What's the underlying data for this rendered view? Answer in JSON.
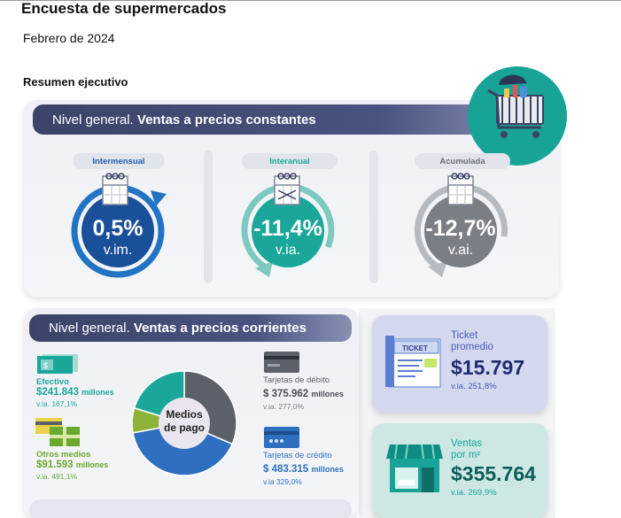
{
  "header": {
    "title": "Encuesta de supermercados",
    "date": "Febrero de 2024",
    "section": "Resumen ejecutivo"
  },
  "constant_prices": {
    "banner_plain": "Nivel general. ",
    "banner_bold": "Ventas a precios constantes",
    "indicators": [
      {
        "label": "Intermensual",
        "value": "0,5%",
        "unit": "v.im.",
        "color": "#1f5fae"
      },
      {
        "label": "Interanual",
        "value": "-11,4%",
        "unit": "v.ia.",
        "color": "#1aa79a"
      },
      {
        "label": "Acumulada",
        "value": "-12,7%",
        "unit": "v.ai.",
        "color": "#7a7f86"
      }
    ]
  },
  "current_prices": {
    "banner_plain": "Nivel general. ",
    "banner_bold": "Ventas a precios corrientes",
    "donut_label_1": "Medios",
    "donut_label_2": "de pago",
    "methods": [
      {
        "label": "Efectivo",
        "value": "$241.843",
        "unit": "millones",
        "variation": "v.ia. 167,1%",
        "color": "#1aa79a"
      },
      {
        "label": "Otros medios",
        "value": "$91.593",
        "unit": "millones",
        "variation": "v.ia. 491,1%",
        "color": "#8db33a"
      },
      {
        "label": "Tarjetas de débito",
        "value": "$ 375.962",
        "unit": "millones",
        "variation": "v.ia. 277,0%",
        "color": "#5c6068"
      },
      {
        "label": "Tarjetas de crédito",
        "value": "$ 483.315",
        "unit": "millones",
        "variation": "v.ia 329,0%",
        "color": "#2f6fc0"
      }
    ]
  },
  "ticket": {
    "label_1": "Ticket",
    "label_2": "promedio",
    "value": "$15.797",
    "variation": "v.ia. 251,8%",
    "icon_text": "TICKET"
  },
  "sales_per_m2": {
    "label_1": "Ventas",
    "label_2": "por m²",
    "value": "$355.764",
    "variation": "v.ia. 269,9%"
  },
  "icons": [
    "calendar-icon",
    "shopping-cart-icon",
    "ticket-icon",
    "store-icon",
    "cash-icon",
    "card-icon"
  ]
}
